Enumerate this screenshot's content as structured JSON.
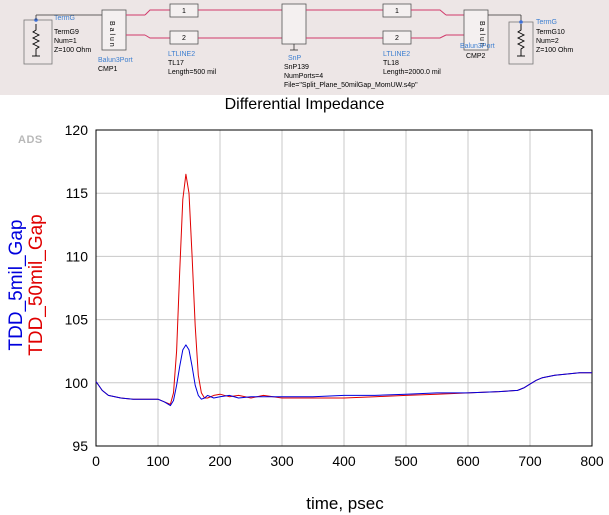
{
  "schematic": {
    "term_left": {
      "type": "TermG",
      "name": "TermG9",
      "num": "Num=1",
      "z": "Z=100 Ohm"
    },
    "balun_left": {
      "type": "Balun3Port",
      "name": "CMP1"
    },
    "line_left": {
      "type": "LTLINE2",
      "name": "TL17",
      "length": "Length=500 mil"
    },
    "snp": {
      "type": "SnP",
      "name": "SnP139",
      "ports": "NumPorts=4",
      "file": "File=\"Split_Plane_50milGap_MomUW.s4p\""
    },
    "line_right": {
      "type": "LTLINE2",
      "name": "TL18",
      "length": "Length=2000.0 mil"
    },
    "balun_right": {
      "type": "Balun3Port",
      "name": "CMP2"
    },
    "term_right": {
      "type": "TermG",
      "name": "TermG10",
      "num": "Num=2",
      "z": "Z=100 Ohm"
    },
    "line_pin1": "1",
    "line_pin2": "2",
    "balun_text": "B a l u n"
  },
  "watermark": "ADS",
  "chart_data": {
    "type": "line",
    "title": "Differential Impedance",
    "xlabel": "time, psec",
    "xlim": [
      0,
      800
    ],
    "ylim": [
      95,
      120
    ],
    "xticks": [
      0,
      100,
      200,
      300,
      400,
      500,
      600,
      700,
      800
    ],
    "yticks": [
      95,
      100,
      105,
      110,
      115,
      120
    ],
    "grid": true,
    "legend_position": "left-vertical",
    "series": [
      {
        "name": "TDD_5mil_Gap",
        "color": "#0000dd",
        "x": [
          0,
          10,
          20,
          40,
          60,
          80,
          100,
          110,
          120,
          125,
          130,
          135,
          140,
          145,
          150,
          155,
          160,
          165,
          170,
          175,
          180,
          190,
          200,
          215,
          230,
          250,
          270,
          300,
          350,
          400,
          450,
          500,
          550,
          600,
          650,
          680,
          690,
          700,
          710,
          720,
          740,
          760,
          780,
          800
        ],
        "y": [
          100.1,
          99.4,
          99.0,
          98.8,
          98.7,
          98.7,
          98.7,
          98.5,
          98.2,
          98.6,
          99.8,
          101.3,
          102.6,
          103.0,
          102.6,
          101.3,
          99.8,
          99.0,
          98.7,
          98.8,
          99.0,
          98.8,
          98.9,
          99.0,
          98.8,
          98.9,
          98.9,
          98.9,
          98.9,
          99.0,
          99.0,
          99.1,
          99.2,
          99.2,
          99.3,
          99.4,
          99.6,
          99.9,
          100.2,
          100.4,
          100.6,
          100.7,
          100.8,
          100.8
        ]
      },
      {
        "name": "TDD_50mil_Gap",
        "color": "#e00000",
        "x": [
          0,
          10,
          20,
          40,
          60,
          80,
          100,
          110,
          120,
          125,
          130,
          135,
          140,
          145,
          150,
          155,
          160,
          165,
          170,
          175,
          180,
          190,
          200,
          215,
          230,
          250,
          270,
          300,
          350,
          400,
          450,
          500,
          550,
          600,
          650,
          680,
          690,
          700,
          710,
          720,
          740,
          760,
          780,
          800
        ],
        "y": [
          100.1,
          99.4,
          99.0,
          98.8,
          98.7,
          98.7,
          98.7,
          98.5,
          98.3,
          99.2,
          102.5,
          108.8,
          114.5,
          116.5,
          115.0,
          110.0,
          104.5,
          100.6,
          99.2,
          98.8,
          98.8,
          99.0,
          99.1,
          98.9,
          99.0,
          98.8,
          99.0,
          98.8,
          98.8,
          98.8,
          98.9,
          99.0,
          99.1,
          99.2,
          99.3,
          99.4,
          99.6,
          99.9,
          100.2,
          100.4,
          100.6,
          100.7,
          100.8,
          100.8
        ]
      }
    ]
  }
}
